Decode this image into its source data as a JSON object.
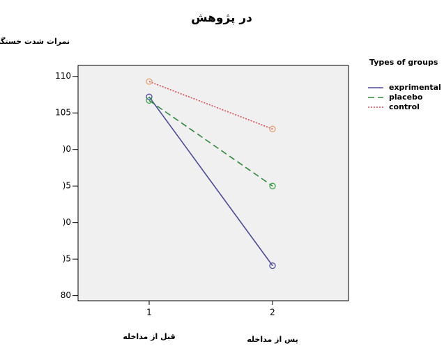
{
  "chart_data": {
    "type": "line",
    "title": "در پژوهش",
    "y_label": "نمرات شدت خستگی",
    "categories": [
      "1",
      "2"
    ],
    "category_notes": [
      "قبل از مداخله",
      "پس از مداخله"
    ],
    "legend_title": "Types of groups",
    "legend": "right",
    "series": [
      {
        "name": "exprimental",
        "color": "#4a4a9c",
        "marker_color": "#4a4a9c",
        "dash": "",
        "values": [
          107.2,
          84.1
        ]
      },
      {
        "name": "placebo",
        "color": "#2f8a3c",
        "marker_color": "#3aa64a",
        "dash": "9,5",
        "values": [
          106.7,
          95.0
        ]
      },
      {
        "name": "control",
        "color": "#e0474f",
        "marker_color": "#e8a070",
        "dash": "2,2",
        "values": [
          109.3,
          102.8
        ]
      }
    ],
    "ylim": [
      79.3,
      111.5
    ],
    "yticks": [
      110,
      105,
      {
        "value": 100,
        "label": ")0"
      },
      {
        "value": 95,
        "label": ")5"
      },
      {
        "value": 90,
        "label": ")0"
      },
      {
        "value": 85,
        "label": ")5"
      },
      80
    ]
  }
}
